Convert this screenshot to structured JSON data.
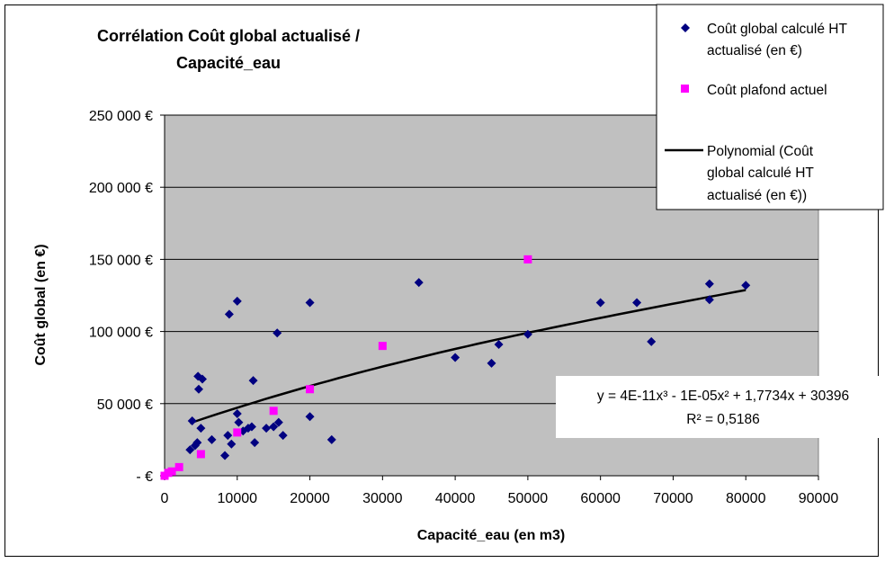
{
  "chart_data": {
    "type": "scatter",
    "title_lines": [
      "Corrélation Coût global actualisé /",
      "Capacité_eau"
    ],
    "xlabel": "Capacité_eau (en m3)",
    "ylabel": "Coût global (en €)",
    "xlim": [
      0,
      90000
    ],
    "ylim": [
      0,
      250000
    ],
    "xticks": [
      0,
      10000,
      20000,
      30000,
      40000,
      50000,
      60000,
      70000,
      80000,
      90000
    ],
    "xtick_labels": [
      "0",
      "10000",
      "20000",
      "30000",
      "40000",
      "50000",
      "60000",
      "70000",
      "80000",
      "90000"
    ],
    "yticks": [
      0,
      50000,
      100000,
      150000,
      200000,
      250000
    ],
    "ytick_labels": [
      "-    €",
      "50 000 €",
      "100 000 €",
      "150 000 €",
      "200 000 €",
      "250 000 €"
    ],
    "plot_background": "#c0c0c0",
    "grid": "horizontal",
    "legend_position": "top-right",
    "series": [
      {
        "name": "Coût global  calculé HT actualisé (en €)",
        "legend_lines": [
          "Coût global  calculé HT",
          "actualisé (en €)"
        ],
        "marker": "diamond",
        "color": "#000080",
        "points": [
          [
            3500,
            18000
          ],
          [
            3800,
            38000
          ],
          [
            4200,
            21000
          ],
          [
            4500,
            23000
          ],
          [
            4600,
            69000
          ],
          [
            4700,
            60000
          ],
          [
            5000,
            33000
          ],
          [
            5200,
            67000
          ],
          [
            6500,
            25000
          ],
          [
            8300,
            14000
          ],
          [
            8700,
            28000
          ],
          [
            8900,
            112000
          ],
          [
            9200,
            22000
          ],
          [
            10000,
            121000
          ],
          [
            10000,
            43000
          ],
          [
            10200,
            37000
          ],
          [
            10800,
            31000
          ],
          [
            11500,
            33000
          ],
          [
            12000,
            34000
          ],
          [
            12200,
            66000
          ],
          [
            12400,
            23000
          ],
          [
            14000,
            33000
          ],
          [
            15000,
            34000
          ],
          [
            15500,
            99000
          ],
          [
            15700,
            37000
          ],
          [
            16300,
            28000
          ],
          [
            20000,
            120000
          ],
          [
            20000,
            41000
          ],
          [
            23000,
            25000
          ],
          [
            35000,
            134000
          ],
          [
            40000,
            82000
          ],
          [
            45000,
            78000
          ],
          [
            46000,
            91000
          ],
          [
            50000,
            98000
          ],
          [
            60000,
            120000
          ],
          [
            65000,
            120000
          ],
          [
            67000,
            93000
          ],
          [
            75000,
            133000
          ],
          [
            75000,
            122000
          ],
          [
            80000,
            132000
          ]
        ]
      },
      {
        "name": "Coût plafond actuel",
        "legend_lines": [
          "Coût plafond actuel"
        ],
        "marker": "square",
        "color": "#ff00ff",
        "points": [
          [
            0,
            0
          ],
          [
            500,
            2000
          ],
          [
            1000,
            3000
          ],
          [
            2000,
            6000
          ],
          [
            5000,
            15000
          ],
          [
            10000,
            30000
          ],
          [
            15000,
            45000
          ],
          [
            20000,
            60000
          ],
          [
            30000,
            90000
          ],
          [
            50000,
            150000
          ]
        ]
      },
      {
        "name": "Polynomial (Coût global  calculé HT actualisé (en €))",
        "legend_lines": [
          "Polynomial (Coût",
          "global  calculé HT",
          "actualisé (en €))"
        ],
        "type": "trendline",
        "color": "#000000",
        "coefficients": {
          "a3": 4e-11,
          "a2": -1e-05,
          "a1": 1.7734,
          "a0": 30396
        },
        "x_range": [
          3500,
          80000
        ]
      }
    ],
    "annotations": {
      "equation": "y = 4E-11x³ - 1E-05x² + 1,7734x + 30396",
      "r_squared": "R² = 0,5186"
    }
  }
}
